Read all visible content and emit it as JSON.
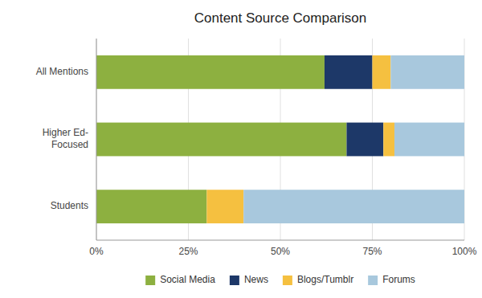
{
  "chart_data": {
    "type": "bar",
    "orientation": "horizontal",
    "stacked": true,
    "title": "Content Source Comparison",
    "categories": [
      "All Mentions",
      "Higher Ed-\nFocused",
      "Students"
    ],
    "series": [
      {
        "name": "Social Media",
        "color": "#8db040",
        "values": [
          62,
          68,
          30
        ]
      },
      {
        "name": "News",
        "color": "#1d3868",
        "values": [
          13,
          10,
          0
        ]
      },
      {
        "name": "Blogs/Tumblr",
        "color": "#f5c040",
        "values": [
          5,
          3,
          10
        ]
      },
      {
        "name": "Forums",
        "color": "#a8c8dd",
        "values": [
          20,
          19,
          60
        ]
      }
    ],
    "xlim": [
      0,
      100
    ],
    "xticks": [
      {
        "value": 0,
        "label": "0%"
      },
      {
        "value": 25,
        "label": "25%"
      },
      {
        "value": 50,
        "label": "50%"
      },
      {
        "value": 75,
        "label": "75%"
      },
      {
        "value": 100,
        "label": "100%"
      }
    ],
    "grid": true,
    "legend": "bottom"
  }
}
